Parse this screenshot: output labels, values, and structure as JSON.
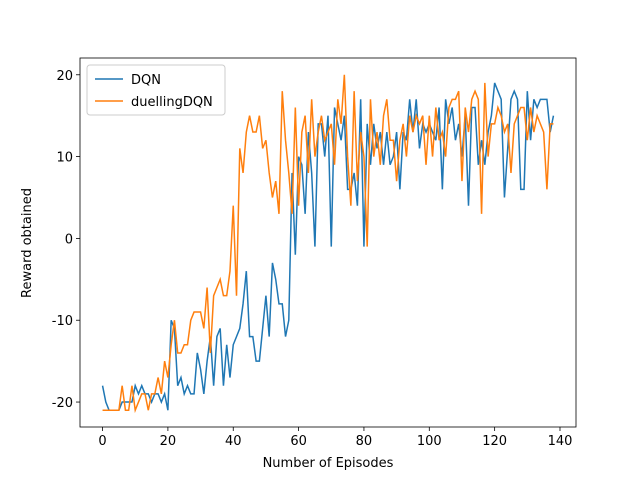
{
  "chart_data": {
    "type": "line",
    "xlabel": "Number of Episodes",
    "ylabel": "Reward obtained",
    "xlim": [
      -6.9,
      144.9
    ],
    "ylim": [
      -23.05,
      22.05
    ],
    "xticks": [
      0,
      20,
      40,
      60,
      80,
      100,
      120,
      140
    ],
    "yticks": [
      -20,
      -10,
      0,
      10,
      20
    ],
    "legend": "upper left",
    "series": [
      {
        "name": "DQN",
        "color": "#1f77b4",
        "values": [
          -18,
          -20,
          -21,
          -21,
          -21,
          -21,
          -20,
          -20,
          -20,
          -20,
          -18,
          -19,
          -18,
          -19,
          -19,
          -20,
          -19,
          -19,
          -20,
          -19,
          -21,
          -10,
          -11,
          -18,
          -17,
          -19,
          -18,
          -19,
          -19,
          -14,
          -16,
          -19,
          -15,
          -12,
          -18,
          -12,
          -11,
          -18,
          -13,
          -17,
          -13,
          -12,
          -11,
          -8,
          -4,
          -12,
          -12,
          -15,
          -15,
          -11,
          -7,
          -12,
          -3,
          -5,
          -8,
          -8,
          -12,
          -10,
          8,
          -2,
          10,
          9,
          3,
          13,
          8,
          -1,
          14,
          14,
          10,
          15,
          -1,
          16,
          14,
          12,
          15,
          6,
          6,
          8,
          4,
          17,
          -1,
          14,
          9,
          14,
          11,
          13,
          9,
          13,
          9,
          10,
          13,
          6,
          13,
          12,
          17,
          13,
          17,
          11,
          14,
          13,
          14,
          13,
          12,
          16,
          6,
          17,
          14,
          16,
          12,
          14,
          10,
          15,
          4,
          16,
          16,
          9,
          12,
          9,
          13,
          15,
          19,
          18,
          17,
          5,
          11,
          17,
          18,
          17,
          6,
          6,
          18,
          12,
          17,
          16,
          17,
          17,
          17,
          13,
          15
        ]
      },
      {
        "name": "duellingDQN",
        "color": "#ff7f0e",
        "values": [
          -21,
          -21,
          -21,
          -21,
          -21,
          -21,
          -18,
          -21,
          -21,
          -18,
          -21,
          -20,
          -19,
          -19,
          -21,
          -19,
          -19,
          -17,
          -19,
          -15,
          -17,
          -13,
          -10,
          -14,
          -14,
          -13,
          -13,
          -10,
          -9,
          -9,
          -9,
          -11,
          -6,
          -14,
          -7,
          -6,
          -5,
          -7,
          -7,
          -4,
          4,
          -7,
          11,
          8,
          13,
          15,
          13,
          13,
          15,
          11,
          12,
          8,
          5,
          7,
          3,
          18,
          12,
          8,
          3,
          16,
          4,
          13,
          15,
          8,
          17,
          10,
          13,
          15,
          12,
          13,
          14,
          9,
          17,
          14,
          20,
          10,
          4,
          18,
          7,
          13,
          10,
          -1,
          17,
          10,
          13,
          9,
          15,
          17,
          12,
          12,
          7,
          12,
          14,
          10,
          15,
          13,
          15,
          14,
          15,
          9,
          15,
          10,
          16,
          12,
          13,
          10,
          16,
          17,
          17,
          18,
          7,
          16,
          13,
          17,
          18,
          17,
          3,
          19,
          10,
          14,
          14,
          16,
          15,
          13,
          14,
          8,
          14,
          15,
          16,
          16,
          12,
          16,
          13,
          15,
          14,
          13,
          6,
          14,
          14
        ]
      }
    ]
  }
}
